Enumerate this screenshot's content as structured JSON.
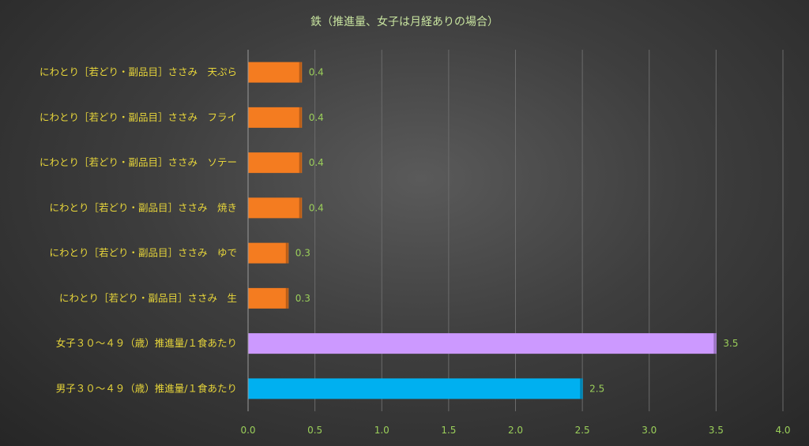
{
  "chart_data": {
    "type": "bar",
    "orientation": "horizontal",
    "title": "鉄（推進量、女子は月経ありの場合）",
    "categories": [
      "にわとり［若どり・副品目］ささみ　天ぷら",
      "にわとり［若どり・副品目］ささみ　フライ",
      "にわとり［若どり・副品目］ささみ　ソテー",
      "にわとり［若どり・副品目］ささみ　焼き",
      "にわとり［若どり・副品目］ささみ　ゆで",
      "にわとり［若どり・副品目］ささみ　生",
      "女子３０～４９（歳）推進量/１食あたり",
      "男子３０～４９（歳）推進量/１食あたり"
    ],
    "values": [
      0.4,
      0.4,
      0.4,
      0.4,
      0.3,
      0.3,
      3.5,
      2.5
    ],
    "value_labels": [
      "0.4",
      "0.4",
      "0.4",
      "0.4",
      "0.3",
      "0.3",
      "3.5",
      "2.5"
    ],
    "bar_colors": [
      "#f47c20",
      "#f47c20",
      "#f47c20",
      "#f47c20",
      "#f47c20",
      "#f47c20",
      "#cc99ff",
      "#00b0f0"
    ],
    "xlim": [
      0,
      4.0
    ],
    "x_ticks": [
      "0.0",
      "0.5",
      "1.0",
      "1.5",
      "2.0",
      "2.5",
      "3.0",
      "3.5",
      "4.0"
    ],
    "xlabel": "",
    "ylabel": "",
    "grid": "vertical",
    "legend": "none"
  }
}
